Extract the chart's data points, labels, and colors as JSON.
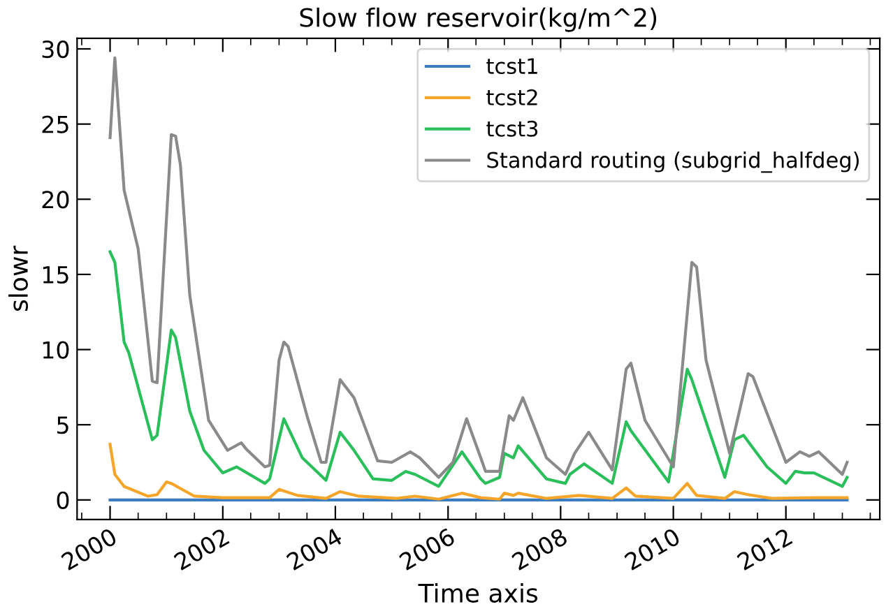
{
  "chart_data": {
    "type": "line",
    "title": "Slow flow reservoir(kg/m^2)",
    "xlabel": "Time axis",
    "ylabel": "slowr",
    "xlim": [
      "1999-06",
      "2013-09"
    ],
    "xticks": [
      "2000",
      "2002",
      "2004",
      "2006",
      "2008",
      "2010",
      "2012"
    ],
    "ylim": [
      -1.3,
      30.7
    ],
    "yticks": [
      0,
      5,
      10,
      15,
      20,
      25,
      30
    ],
    "grid": false,
    "legend": "top right",
    "marker": "none",
    "line_style": "solid",
    "series": [
      {
        "name": "tcst1",
        "color": "#3b7dc0",
        "x": [
          "2000-01",
          "2013-02"
        ],
        "values": [
          0,
          0
        ]
      },
      {
        "name": "tcst2",
        "color": "#f5a52a",
        "x": [
          "2000-01",
          "2000-02",
          "2000-04",
          "2000-09",
          "2000-11",
          "2001-01",
          "2001-02",
          "2001-07",
          "2002-01",
          "2002-11",
          "2003-01",
          "2003-05",
          "2003-11",
          "2004-02",
          "2004-06",
          "2005-02",
          "2005-06",
          "2005-11",
          "2006-04",
          "2006-08",
          "2006-12",
          "2007-01",
          "2007-03",
          "2007-04",
          "2007-10",
          "2008-05",
          "2008-12",
          "2009-03",
          "2009-05",
          "2010-01",
          "2010-04",
          "2010-06",
          "2010-12",
          "2011-02",
          "2011-05",
          "2011-10",
          "2012-07",
          "2013-02"
        ],
        "values": [
          3.7,
          1.7,
          0.9,
          0.25,
          0.35,
          1.2,
          1.1,
          0.25,
          0.15,
          0.15,
          0.7,
          0.3,
          0.1,
          0.55,
          0.25,
          0.1,
          0.25,
          0.05,
          0.45,
          0.15,
          0.05,
          0.45,
          0.3,
          0.45,
          0.1,
          0.3,
          0.1,
          0.8,
          0.25,
          0.1,
          1.1,
          0.3,
          0.1,
          0.55,
          0.35,
          0.1,
          0.15,
          0.15
        ]
      },
      {
        "name": "tcst3",
        "color": "#2bbf5c",
        "x": [
          "2000-01",
          "2000-02",
          "2000-04",
          "2000-05",
          "2000-10",
          "2000-11",
          "2001-02",
          "2001-03",
          "2001-06",
          "2001-09",
          "2002-01",
          "2002-04",
          "2002-10",
          "2002-11",
          "2003-02",
          "2003-06",
          "2003-11",
          "2004-02",
          "2004-05",
          "2004-09",
          "2005-01",
          "2005-04",
          "2005-06",
          "2005-11",
          "2006-04",
          "2006-08",
          "2006-09",
          "2006-12",
          "2007-01",
          "2007-03",
          "2007-04",
          "2007-10",
          "2008-02",
          "2008-03",
          "2008-06",
          "2008-12",
          "2009-03",
          "2009-04",
          "2009-12",
          "2010-04",
          "2010-05",
          "2010-12",
          "2011-02",
          "2011-04",
          "2011-09",
          "2012-01",
          "2012-03",
          "2012-05",
          "2012-07",
          "2013-01",
          "2013-02"
        ],
        "values": [
          16.5,
          15.8,
          10.5,
          9.8,
          4.0,
          4.3,
          11.3,
          10.8,
          5.9,
          3.3,
          1.8,
          2.2,
          1.1,
          1.4,
          5.4,
          2.8,
          1.3,
          4.5,
          3.3,
          1.4,
          1.3,
          1.9,
          1.7,
          0.9,
          3.2,
          1.4,
          1.1,
          1.5,
          3.1,
          2.8,
          3.6,
          1.4,
          1.1,
          1.7,
          2.4,
          1.1,
          5.2,
          4.6,
          1.2,
          8.7,
          8.0,
          1.5,
          4.0,
          4.3,
          2.2,
          1.1,
          1.9,
          1.8,
          1.8,
          0.9,
          1.5
        ]
      },
      {
        "name": "Standard routing (subgrid_halfdeg)",
        "color": "#8a8a8a",
        "x": [
          "2000-01",
          "2000-02",
          "2000-04",
          "2000-07",
          "2000-10",
          "2000-11",
          "2001-02",
          "2001-03",
          "2001-04",
          "2001-06",
          "2001-10",
          "2002-02",
          "2002-05",
          "2002-06",
          "2002-10",
          "2002-11",
          "2003-01",
          "2003-02",
          "2003-03",
          "2003-07",
          "2003-10",
          "2003-11",
          "2004-02",
          "2004-05",
          "2004-10",
          "2005-01",
          "2005-05",
          "2005-07",
          "2005-11",
          "2006-02",
          "2006-05",
          "2006-08",
          "2006-09",
          "2006-12",
          "2007-02",
          "2007-03",
          "2007-05",
          "2007-10",
          "2008-02",
          "2008-04",
          "2008-07",
          "2008-12",
          "2009-03",
          "2009-04",
          "2009-07",
          "2010-01",
          "2010-05",
          "2010-06",
          "2010-08",
          "2011-01",
          "2011-05",
          "2011-06",
          "2012-01",
          "2012-04",
          "2012-06",
          "2012-08",
          "2013-01",
          "2013-02"
        ],
        "values": [
          24.1,
          29.4,
          20.6,
          16.7,
          7.9,
          7.8,
          24.3,
          24.2,
          22.3,
          13.6,
          5.3,
          3.3,
          3.8,
          3.4,
          2.2,
          2.3,
          9.3,
          10.5,
          10.2,
          5.6,
          2.5,
          2.5,
          8.0,
          6.8,
          2.6,
          2.5,
          3.2,
          2.8,
          1.5,
          2.5,
          5.4,
          2.8,
          1.9,
          1.9,
          5.6,
          5.3,
          6.8,
          2.8,
          1.7,
          3.1,
          4.5,
          2.0,
          8.7,
          9.1,
          5.3,
          2.2,
          15.8,
          15.5,
          9.3,
          3.1,
          8.4,
          8.2,
          2.5,
          3.2,
          2.9,
          3.2,
          1.7,
          2.5
        ]
      }
    ]
  }
}
